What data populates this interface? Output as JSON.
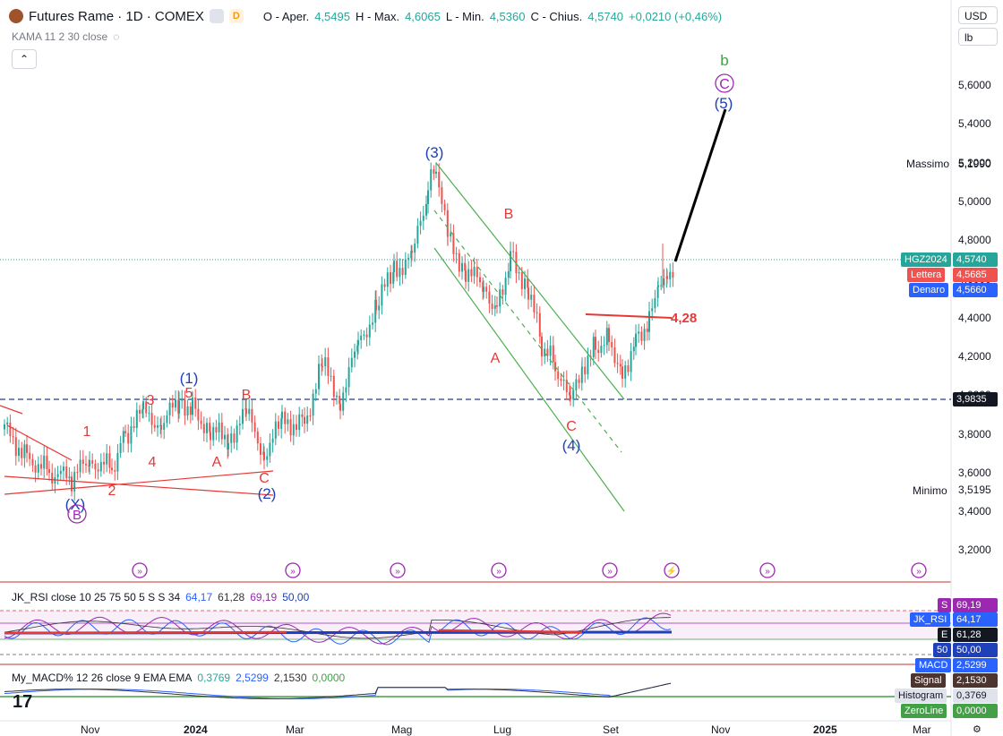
{
  "header": {
    "title": "Futures Rame · 1D · COMEX",
    "badge1": "",
    "badge2": "D",
    "ohlc": {
      "o_label": "O - Aper.",
      "o": "4,5495",
      "h_label": "H - Max.",
      "h": "4,6065",
      "l_label": "L - Min.",
      "l": "4,5360",
      "c_label": "C - Chius.",
      "c": "4,5740",
      "chg": "+0,0210 (+0,46%)"
    },
    "indicator": "KAMA 11 2 30 close",
    "currency": "USD",
    "unit": "lb"
  },
  "price_axis": {
    "ticks": [
      "5,6000",
      "5,4000",
      "5,2000",
      "5,0000",
      "4,8000",
      "4,6000",
      "4,4000",
      "4,2000",
      "4,0000",
      "3,8000",
      "3,6000",
      "3,4000",
      "3,2000"
    ],
    "massimo_label": "Massimo",
    "massimo": "5,1990",
    "minimo_label": "Minimo",
    "minimo": "3,5195",
    "symbol_label": "HGZ2024",
    "symbol_price": "4,5740",
    "ask_label": "Lettera",
    "ask": "4,5685",
    "bid_label": "Denaro",
    "bid": "4,5660",
    "hline": "3,9835"
  },
  "annotations": {
    "wave_b": "b",
    "wave_C": "C",
    "wave_5": "(5)",
    "wave_3": "(3)",
    "wave_B": "B",
    "wave_A": "A",
    "wave_Cred": "C",
    "wave_4": "(4)",
    "level_428": "4,28",
    "w1": "(1)",
    "w5": "5",
    "w3": "3",
    "wB2": "B",
    "w1s": "1",
    "w4": "4",
    "wA2": "A",
    "wC2": "C",
    "w2p": "(2)",
    "w2": "2",
    "wX": "(X)",
    "wBc": "B"
  },
  "colors": {
    "up": "#26a69a",
    "down": "#ef5350",
    "blue": "#2962ff",
    "red": "#e53935",
    "green": "#43a047",
    "purple": "#9c27b0"
  },
  "rsi": {
    "title": "JK_RSI close 10 25 75 50 5 S S 34",
    "v1": "64,17",
    "v2": "61,28",
    "v3": "69,19",
    "v4": "50,00",
    "s_label": "S",
    "s": "69,19",
    "rsi_label": "JK_RSI",
    "rsi": "64,17",
    "e_label": "E",
    "e": "61,28",
    "fifty_label": "50",
    "fifty": "50,00"
  },
  "macd": {
    "title": "My_MACD% 12 26 close 9 EMA EMA",
    "v1": "0,3769",
    "v2": "2,5299",
    "v3": "2,1530",
    "v4": "0,0000",
    "macd_label": "MACD",
    "macd": "2,5299",
    "signal_label": "Signal",
    "signal": "2,1530",
    "hist_label": "Histogram",
    "hist": "0,3769",
    "zero_label": "ZeroLine",
    "zero": "0,0000"
  },
  "time_axis": {
    "labels": [
      "Nov",
      "2024",
      "Mar",
      "Mag",
      "Lug",
      "Set",
      "Nov",
      "2025",
      "Mar"
    ]
  },
  "chart_data": {
    "type": "candlestick",
    "title": "Futures Rame · 1D · COMEX",
    "x": [
      "2023-10",
      "2023-11",
      "2023-12",
      "2024-01",
      "2024-02",
      "2024-03",
      "2024-04",
      "2024-05",
      "2024-06",
      "2024-07",
      "2024-08",
      "2024-09",
      "2024-10"
    ],
    "close": [
      3.7,
      3.62,
      3.85,
      3.9,
      3.72,
      3.95,
      4.3,
      5.1,
      4.55,
      4.35,
      4.05,
      4.4,
      4.574
    ],
    "ylim": [
      3.1,
      5.8
    ],
    "high": 5.199,
    "low": 3.5195,
    "last": 4.574
  }
}
